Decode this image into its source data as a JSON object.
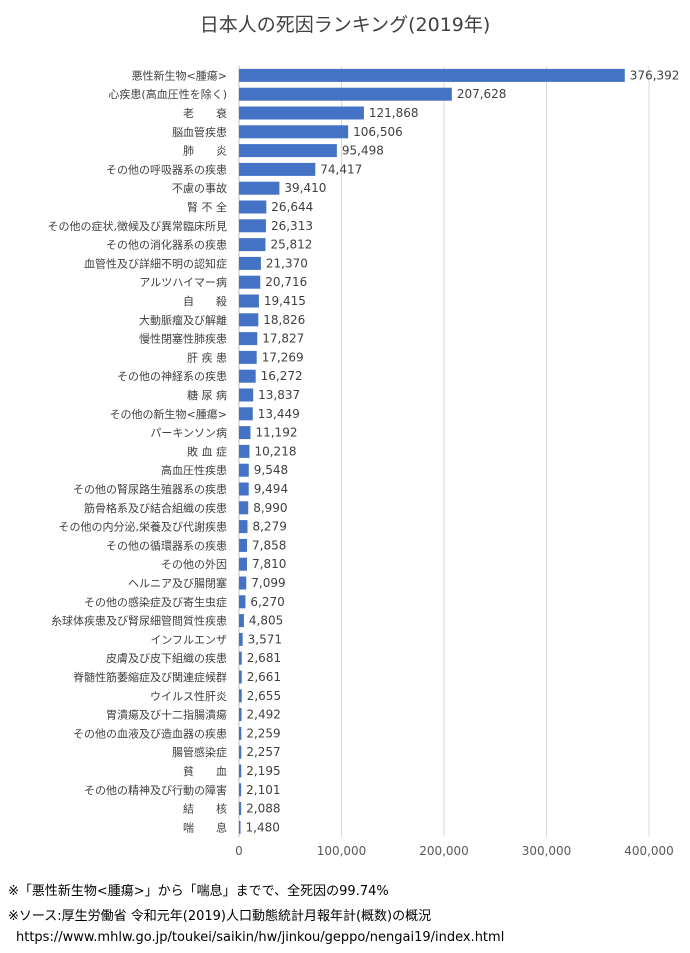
{
  "chart_data": {
    "type": "bar",
    "orientation": "horizontal",
    "title": "日本人の死因ランキング(2019年)",
    "xlim": [
      0,
      400000
    ],
    "x_ticks": [
      "0",
      "100,000",
      "200,000",
      "300,000",
      "400,000"
    ],
    "grid": true,
    "bar_color": "#4472c4",
    "categories": [
      "悪性新生物<腫瘍>",
      "心疾患(高血圧性を除く)",
      "老　　衰",
      "脳血管疾患",
      "肺　　炎",
      "その他の呼吸器系の疾患",
      "不慮の事故",
      "腎 不 全",
      "その他の症状,徴候及び異常臨床所見",
      "その他の消化器系の疾患",
      "血管性及び詳細不明の認知症",
      "アルツハイマー病",
      "自　　殺",
      "大動脈瘤及び解離",
      "慢性閉塞性肺疾患",
      "肝 疾 患",
      "その他の神経系の疾患",
      "糖 尿 病",
      "その他の新生物<腫瘍>",
      "パーキンソン病",
      "敗 血 症",
      "高血圧性疾患",
      "その他の腎尿路生殖器系の疾患",
      "筋骨格系及び結合組織の疾患",
      "その他の内分泌,栄養及び代謝疾患",
      "その他の循環器系の疾患",
      "その他の外因",
      "ヘルニア及び腸閉塞",
      "その他の感染症及び寄生虫症",
      "糸球体疾患及び腎尿細管間質性疾患",
      "インフルエンザ",
      "皮膚及び皮下組織の疾患",
      "脊髄性筋萎縮症及び関連症候群",
      "ウイルス性肝炎",
      "胃潰瘍及び十二指腸潰瘍",
      "その他の血液及び造血器の疾患",
      "腸管感染症",
      "貧　　血",
      "その他の精神及び行動の障害",
      "結　　核",
      "喘　　息"
    ],
    "values": [
      376392,
      207628,
      121868,
      106506,
      95498,
      74417,
      39410,
      26644,
      26313,
      25812,
      21370,
      20716,
      19415,
      18826,
      17827,
      17269,
      16272,
      13837,
      13449,
      11192,
      10218,
      9548,
      9494,
      8990,
      8279,
      7858,
      7810,
      7099,
      6270,
      4805,
      3571,
      2681,
      2661,
      2655,
      2492,
      2259,
      2257,
      2195,
      2101,
      2088,
      1480
    ],
    "value_labels": [
      "376,392",
      "207,628",
      "121,868",
      "106,506",
      "95,498",
      "74,417",
      "39,410",
      "26,644",
      "26,313",
      "25,812",
      "21,370",
      "20,716",
      "19,415",
      "18,826",
      "17,827",
      "17,269",
      "16,272",
      "13,837",
      "13,449",
      "11,192",
      "10,218",
      "9,548",
      "9,494",
      "8,990",
      "8,279",
      "7,858",
      "7,810",
      "7,099",
      "6,270",
      "4,805",
      "3,571",
      "2,681",
      "2,661",
      "2,655",
      "2,492",
      "2,259",
      "2,257",
      "2,195",
      "2,101",
      "2,088",
      "1,480"
    ]
  },
  "notes": {
    "line1": "※「悪性新生物<腫瘍>」から「喘息」までで、全死因の99.74%",
    "line2": "※ソース:厚生労働省 令和元年(2019)人口動態統計月報年計(概数)の概況",
    "url": "https://www.mhlw.go.jp/toukei/saikin/hw/jinkou/geppo/nengai19/index.html"
  }
}
